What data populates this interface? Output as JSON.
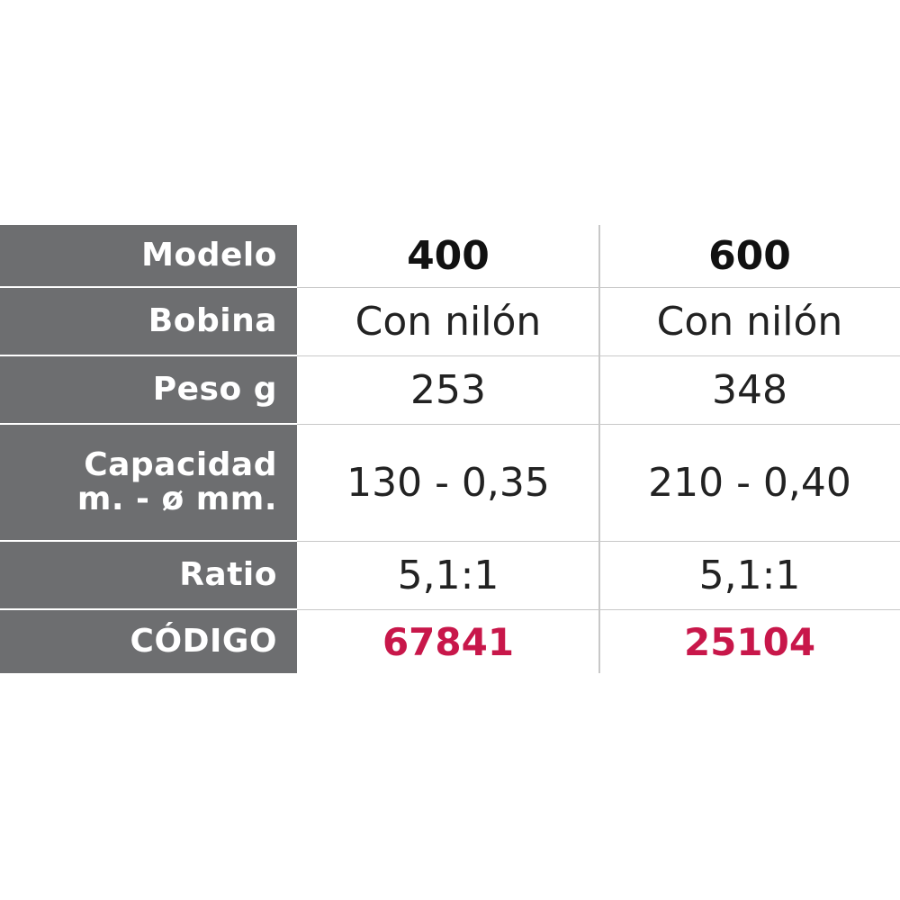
{
  "table": {
    "rows": [
      {
        "label": [
          "Modelo"
        ],
        "values": [
          "400",
          "600"
        ]
      },
      {
        "label": [
          "Bobina"
        ],
        "values": [
          "Con nilón",
          "Con nilón"
        ]
      },
      {
        "label": [
          "Peso g"
        ],
        "values": [
          "253",
          "348"
        ]
      },
      {
        "label": [
          "Capacidad",
          "m. - ø mm."
        ],
        "values": [
          "130 - 0,35",
          "210 - 0,40"
        ]
      },
      {
        "label": [
          "Ratio"
        ],
        "values": [
          "5,1:1",
          "5,1:1"
        ]
      },
      {
        "label": [
          "CÓDIGO"
        ],
        "values": [
          "67841",
          "25104"
        ]
      }
    ]
  }
}
